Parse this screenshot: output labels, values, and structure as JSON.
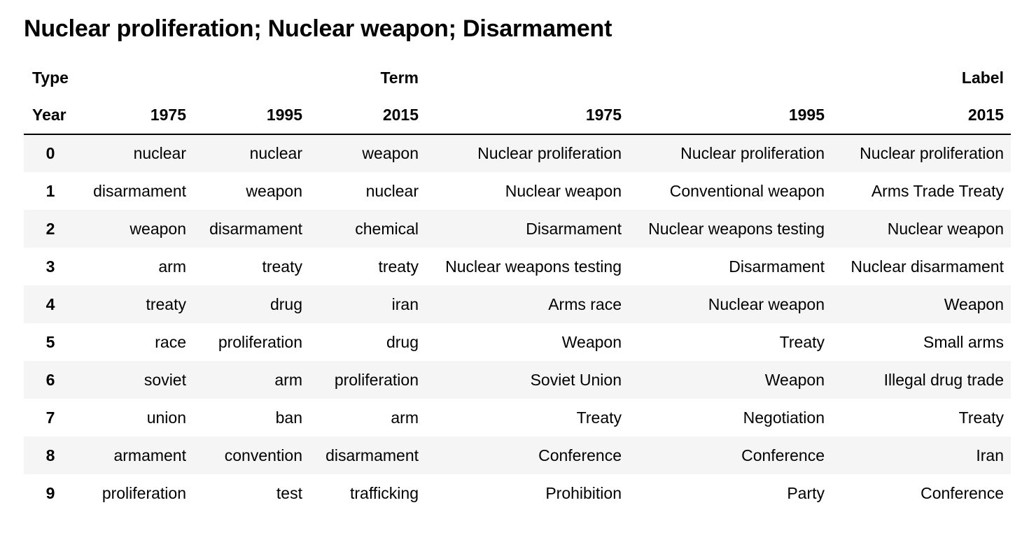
{
  "title": "Nuclear proliferation; Nuclear weapon; Disarmament",
  "header": {
    "level0_name": "Type",
    "level1_name": "Year",
    "groups": [
      {
        "label": "Term",
        "years": [
          "1975",
          "1995",
          "2015"
        ]
      },
      {
        "label": "Label",
        "years": [
          "1975",
          "1995",
          "2015"
        ]
      }
    ]
  },
  "rows": [
    {
      "index": "0",
      "cells": [
        "nuclear",
        "nuclear",
        "weapon",
        "Nuclear proliferation",
        "Nuclear proliferation",
        "Nuclear proliferation"
      ]
    },
    {
      "index": "1",
      "cells": [
        "disarmament",
        "weapon",
        "nuclear",
        "Nuclear weapon",
        "Conventional weapon",
        "Arms Trade Treaty"
      ]
    },
    {
      "index": "2",
      "cells": [
        "weapon",
        "disarmament",
        "chemical",
        "Disarmament",
        "Nuclear weapons testing",
        "Nuclear weapon"
      ]
    },
    {
      "index": "3",
      "cells": [
        "arm",
        "treaty",
        "treaty",
        "Nuclear weapons testing",
        "Disarmament",
        "Nuclear disarmament"
      ]
    },
    {
      "index": "4",
      "cells": [
        "treaty",
        "drug",
        "iran",
        "Arms race",
        "Nuclear weapon",
        "Weapon"
      ]
    },
    {
      "index": "5",
      "cells": [
        "race",
        "proliferation",
        "drug",
        "Weapon",
        "Treaty",
        "Small arms"
      ]
    },
    {
      "index": "6",
      "cells": [
        "soviet",
        "arm",
        "proliferation",
        "Soviet Union",
        "Weapon",
        "Illegal drug trade"
      ]
    },
    {
      "index": "7",
      "cells": [
        "union",
        "ban",
        "arm",
        "Treaty",
        "Negotiation",
        "Treaty"
      ]
    },
    {
      "index": "8",
      "cells": [
        "armament",
        "convention",
        "disarmament",
        "Conference",
        "Conference",
        "Iran"
      ]
    },
    {
      "index": "9",
      "cells": [
        "proliferation",
        "test",
        "trafficking",
        "Prohibition",
        "Party",
        "Conference"
      ]
    }
  ]
}
